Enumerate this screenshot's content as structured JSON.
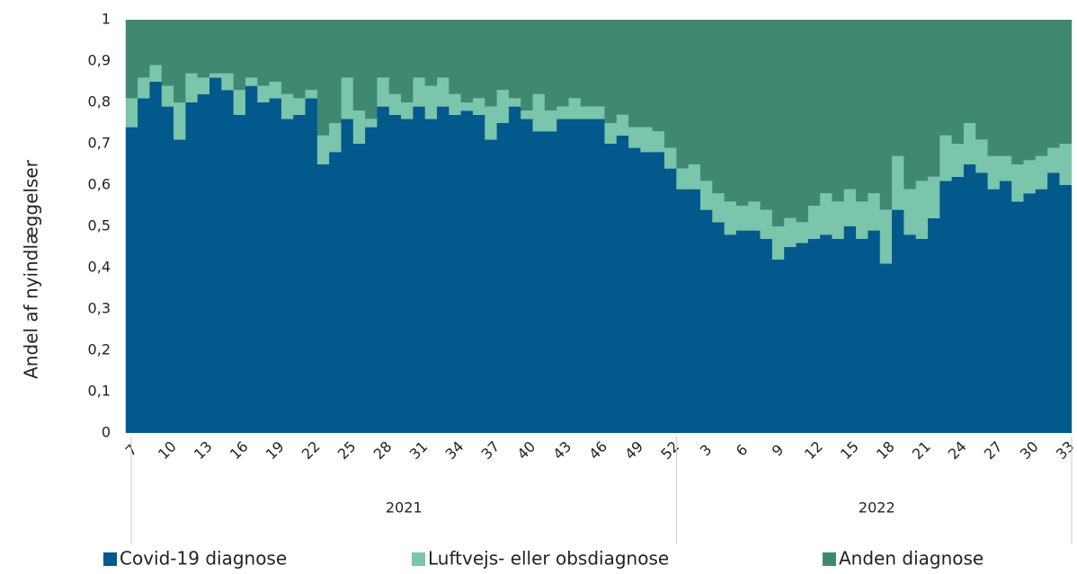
{
  "chart_data": {
    "type": "stacked_bar",
    "y_label": "Andel af nyindlæggelser",
    "categories": [
      "7",
      null,
      null,
      "10",
      null,
      null,
      "13",
      null,
      null,
      "16",
      null,
      null,
      "19",
      null,
      null,
      "22",
      null,
      null,
      "25",
      null,
      null,
      "28",
      null,
      null,
      "31",
      null,
      null,
      "34",
      null,
      null,
      "37",
      null,
      null,
      "40",
      null,
      null,
      "43",
      null,
      null,
      "46",
      null,
      null,
      "49",
      null,
      null,
      "52",
      null,
      null,
      "3",
      null,
      null,
      "6",
      null,
      null,
      "9",
      null,
      null,
      "12",
      null,
      null,
      "15",
      null,
      null,
      "18",
      null,
      null,
      "21",
      null,
      null,
      "24",
      null,
      null,
      "27",
      null,
      null,
      "30",
      null,
      null,
      "33"
    ],
    "groups": [
      {
        "label": "2021",
        "count": 46
      },
      {
        "label": "2022",
        "count": 33
      }
    ],
    "series": [
      {
        "name": "Covid-19 diagnose",
        "color": "#02598c",
        "values": [
          0.74,
          0.81,
          0.85,
          0.79,
          0.71,
          0.8,
          0.82,
          0.86,
          0.83,
          0.77,
          0.84,
          0.8,
          0.81,
          0.76,
          0.77,
          0.81,
          0.65,
          0.68,
          0.76,
          0.7,
          0.74,
          0.79,
          0.77,
          0.76,
          0.79,
          0.76,
          0.79,
          0.77,
          0.78,
          0.77,
          0.71,
          0.75,
          0.79,
          0.76,
          0.73,
          0.73,
          0.76,
          0.76,
          0.76,
          0.76,
          0.7,
          0.72,
          0.69,
          0.68,
          0.68,
          0.64,
          0.59,
          0.59,
          0.54,
          0.51,
          0.48,
          0.49,
          0.49,
          0.47,
          0.42,
          0.45,
          0.46,
          0.47,
          0.48,
          0.47,
          0.5,
          0.47,
          0.49,
          0.41,
          0.54,
          0.48,
          0.47,
          0.52,
          0.61,
          0.62,
          0.65,
          0.63,
          0.59,
          0.61,
          0.56,
          0.58,
          0.59,
          0.63,
          0.6
        ]
      },
      {
        "name": "Luftvejs- eller obsdiagnose",
        "color": "#7ac5ab",
        "values": [
          0.07,
          0.05,
          0.04,
          0.05,
          0.09,
          0.07,
          0.04,
          0.01,
          0.04,
          0.06,
          0.02,
          0.04,
          0.04,
          0.06,
          0.04,
          0.02,
          0.07,
          0.07,
          0.1,
          0.08,
          0.02,
          0.07,
          0.05,
          0.04,
          0.07,
          0.08,
          0.07,
          0.05,
          0.02,
          0.04,
          0.08,
          0.08,
          0.02,
          0.02,
          0.09,
          0.05,
          0.03,
          0.05,
          0.03,
          0.03,
          0.05,
          0.05,
          0.05,
          0.06,
          0.05,
          0.05,
          0.05,
          0.06,
          0.07,
          0.07,
          0.08,
          0.06,
          0.07,
          0.07,
          0.08,
          0.07,
          0.05,
          0.08,
          0.1,
          0.09,
          0.09,
          0.09,
          0.09,
          0.13,
          0.13,
          0.11,
          0.14,
          0.1,
          0.11,
          0.08,
          0.1,
          0.08,
          0.08,
          0.06,
          0.09,
          0.08,
          0.08,
          0.06,
          0.1
        ]
      },
      {
        "name": "Anden diagnose",
        "color": "#418872",
        "values": [
          0.19,
          0.14,
          0.11,
          0.16,
          0.2,
          0.13,
          0.14,
          0.13,
          0.13,
          0.17,
          0.14,
          0.16,
          0.15,
          0.18,
          0.19,
          0.17,
          0.28,
          0.25,
          0.14,
          0.22,
          0.24,
          0.14,
          0.18,
          0.2,
          0.14,
          0.16,
          0.14,
          0.18,
          0.2,
          0.19,
          0.21,
          0.17,
          0.19,
          0.22,
          0.18,
          0.22,
          0.21,
          0.19,
          0.21,
          0.21,
          0.25,
          0.23,
          0.26,
          0.26,
          0.27,
          0.31,
          0.36,
          0.35,
          0.39,
          0.42,
          0.44,
          0.45,
          0.44,
          0.46,
          0.5,
          0.48,
          0.49,
          0.45,
          0.42,
          0.44,
          0.41,
          0.44,
          0.42,
          0.46,
          0.33,
          0.41,
          0.39,
          0.38,
          0.28,
          0.3,
          0.25,
          0.29,
          0.33,
          0.33,
          0.35,
          0.34,
          0.33,
          0.31,
          0.3
        ]
      }
    ],
    "ylim": [
      0,
      1
    ],
    "yticks": [
      0,
      {
        "value": 0.1,
        "label": "0,1"
      },
      {
        "value": 0.2,
        "label": "0,2"
      },
      {
        "value": 0.3,
        "label": "0,3"
      },
      {
        "value": 0.4,
        "label": "0,4"
      },
      {
        "value": 0.5,
        "label": "0,5"
      },
      {
        "value": 0.6,
        "label": "0,6"
      },
      {
        "value": 0.7,
        "label": "0,7"
      },
      {
        "value": 0.8,
        "label": "0,8"
      },
      {
        "value": 0.9,
        "label": "0,9"
      },
      1
    ],
    "legend": "bottom"
  }
}
